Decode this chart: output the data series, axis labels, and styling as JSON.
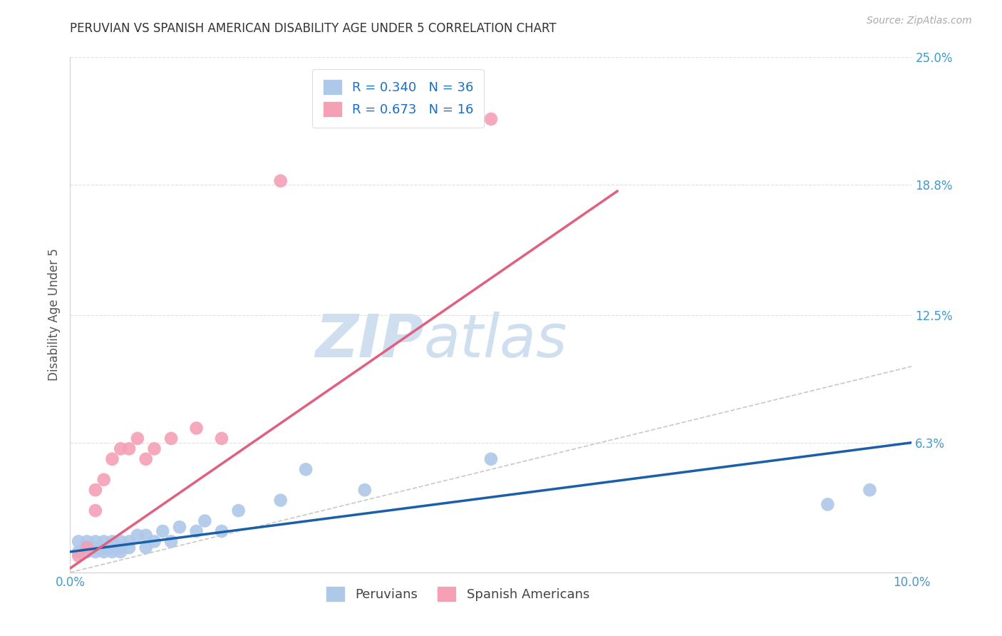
{
  "title": "PERUVIAN VS SPANISH AMERICAN DISABILITY AGE UNDER 5 CORRELATION CHART",
  "source": "Source: ZipAtlas.com",
  "ylabel": "Disability Age Under 5",
  "xlim": [
    0.0,
    0.1
  ],
  "ylim": [
    0.0,
    0.25
  ],
  "ytick_positions": [
    0.0,
    0.063,
    0.125,
    0.188,
    0.25
  ],
  "ytick_labels": [
    "",
    "6.3%",
    "12.5%",
    "18.8%",
    "25.0%"
  ],
  "blue_R": "0.340",
  "blue_N": "36",
  "pink_R": "0.673",
  "pink_N": "16",
  "blue_color": "#adc8e8",
  "pink_color": "#f5a0b5",
  "blue_line_color": "#1a5fa8",
  "pink_line_color": "#e06080",
  "ref_line_color": "#c8c8c8",
  "grid_color": "#e0e0e0",
  "legend_R_color": "#1a6fc4",
  "blue_scatter_x": [
    0.001,
    0.001,
    0.002,
    0.002,
    0.002,
    0.003,
    0.003,
    0.003,
    0.004,
    0.004,
    0.004,
    0.005,
    0.005,
    0.005,
    0.006,
    0.006,
    0.006,
    0.007,
    0.007,
    0.008,
    0.009,
    0.009,
    0.01,
    0.011,
    0.012,
    0.013,
    0.015,
    0.016,
    0.018,
    0.02,
    0.025,
    0.028,
    0.035,
    0.05,
    0.09,
    0.095
  ],
  "blue_scatter_y": [
    0.01,
    0.015,
    0.01,
    0.012,
    0.015,
    0.01,
    0.012,
    0.015,
    0.01,
    0.012,
    0.015,
    0.01,
    0.012,
    0.015,
    0.01,
    0.012,
    0.015,
    0.012,
    0.015,
    0.018,
    0.012,
    0.018,
    0.015,
    0.02,
    0.015,
    0.022,
    0.02,
    0.025,
    0.02,
    0.03,
    0.035,
    0.05,
    0.04,
    0.055,
    0.033,
    0.04
  ],
  "pink_scatter_x": [
    0.001,
    0.002,
    0.003,
    0.003,
    0.004,
    0.005,
    0.006,
    0.007,
    0.008,
    0.009,
    0.01,
    0.012,
    0.015,
    0.018,
    0.025,
    0.05
  ],
  "pink_scatter_y": [
    0.008,
    0.012,
    0.03,
    0.04,
    0.045,
    0.055,
    0.06,
    0.06,
    0.065,
    0.055,
    0.06,
    0.065,
    0.07,
    0.065,
    0.19,
    0.22
  ],
  "blue_trend": [
    0.0,
    0.1,
    0.01,
    0.063
  ],
  "pink_trend": [
    0.0,
    0.065,
    0.002,
    0.185
  ],
  "ref_line": [
    0.0,
    0.25,
    0.0,
    0.25
  ],
  "watermark_zip": "ZIP",
  "watermark_atlas": "atlas",
  "watermark_color": "#d0dff0",
  "background_color": "#ffffff"
}
